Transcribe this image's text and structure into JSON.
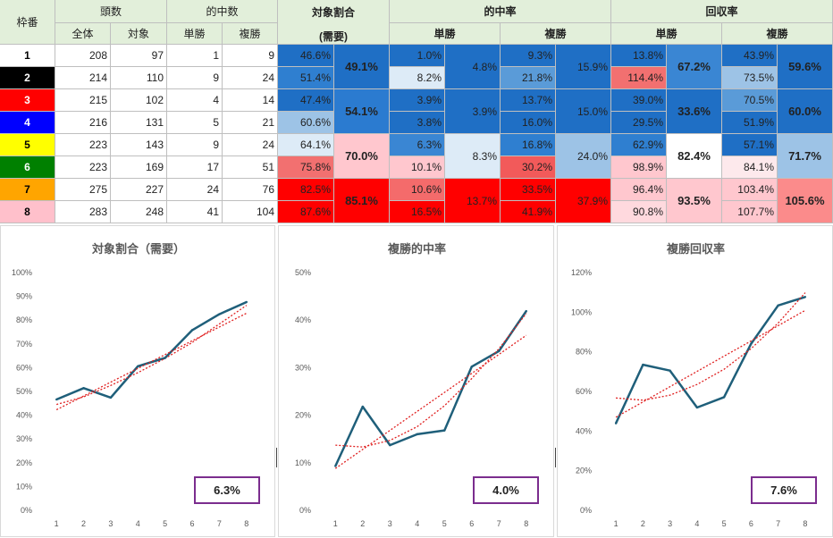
{
  "table": {
    "header": {
      "waku": "枠番",
      "tousu": "頭数",
      "zentai": "全体",
      "taisho": "対象",
      "tekichusu": "的中数",
      "tansho": "単勝",
      "fukusho": "複勝",
      "taisho_wariai": "対象割合",
      "juyou": "(需要)",
      "tekichuritsu": "的中率",
      "kaishuritsu": "回収率"
    },
    "rows": [
      {
        "waku": "1",
        "zentai": "208",
        "taisho": "97",
        "tan_hits": "1",
        "fuku_hits": "9",
        "ratio": "46.6%",
        "tan_rate": "1.0%",
        "fuku_rate": "9.3%",
        "tan_ret": "13.8%",
        "fuku_ret": "43.9%"
      },
      {
        "waku": "2",
        "zentai": "214",
        "taisho": "110",
        "tan_hits": "9",
        "fuku_hits": "24",
        "ratio": "51.4%",
        "tan_rate": "8.2%",
        "fuku_rate": "21.8%",
        "tan_ret": "114.4%",
        "fuku_ret": "73.5%"
      },
      {
        "waku": "3",
        "zentai": "215",
        "taisho": "102",
        "tan_hits": "4",
        "fuku_hits": "14",
        "ratio": "47.4%",
        "tan_rate": "3.9%",
        "fuku_rate": "13.7%",
        "tan_ret": "39.0%",
        "fuku_ret": "70.5%"
      },
      {
        "waku": "4",
        "zentai": "216",
        "taisho": "131",
        "tan_hits": "5",
        "fuku_hits": "21",
        "ratio": "60.6%",
        "tan_rate": "3.8%",
        "fuku_rate": "16.0%",
        "tan_ret": "29.5%",
        "fuku_ret": "51.9%"
      },
      {
        "waku": "5",
        "zentai": "223",
        "taisho": "143",
        "tan_hits": "9",
        "fuku_hits": "24",
        "ratio": "64.1%",
        "tan_rate": "6.3%",
        "fuku_rate": "16.8%",
        "tan_ret": "62.9%",
        "fuku_ret": "57.1%"
      },
      {
        "waku": "6",
        "zentai": "223",
        "taisho": "169",
        "tan_hits": "17",
        "fuku_hits": "51",
        "ratio": "75.8%",
        "tan_rate": "10.1%",
        "fuku_rate": "30.2%",
        "tan_ret": "98.9%",
        "fuku_ret": "84.1%"
      },
      {
        "waku": "7",
        "zentai": "275",
        "taisho": "227",
        "tan_hits": "24",
        "fuku_hits": "76",
        "ratio": "82.5%",
        "tan_rate": "10.6%",
        "fuku_rate": "33.5%",
        "tan_ret": "96.4%",
        "fuku_ret": "103.4%"
      },
      {
        "waku": "8",
        "zentai": "283",
        "taisho": "248",
        "tan_hits": "41",
        "fuku_hits": "104",
        "ratio": "87.6%",
        "tan_rate": "16.5%",
        "fuku_rate": "41.9%",
        "tan_ret": "90.8%",
        "fuku_ret": "107.7%"
      }
    ],
    "pairs": [
      {
        "ratio": "49.1%",
        "tan_rate": "4.8%",
        "fuku_rate": "15.9%",
        "tan_ret": "67.2%",
        "fuku_ret": "59.6%"
      },
      {
        "ratio": "54.1%",
        "tan_rate": "3.9%",
        "fuku_rate": "15.0%",
        "tan_ret": "33.6%",
        "fuku_ret": "60.0%"
      },
      {
        "ratio": "70.0%",
        "tan_rate": "8.3%",
        "fuku_rate": "24.0%",
        "tan_ret": "82.4%",
        "fuku_ret": "71.7%"
      },
      {
        "ratio": "85.1%",
        "tan_rate": "13.7%",
        "fuku_rate": "37.9%",
        "tan_ret": "93.5%",
        "fuku_ret": "105.6%"
      }
    ],
    "colors": {
      "header_bg": "#e2efda",
      "waku_colors": [
        "#ffffff",
        "#000000",
        "#ff0000",
        "#0000ff",
        "#ffff00",
        "#008000",
        "#ffa500",
        "#ffc0cb"
      ],
      "waku_text": [
        "#000000",
        "#ffffff",
        "#ffffff",
        "#ffffff",
        "#000000",
        "#ffffff",
        "#000000",
        "#000000"
      ],
      "ratio": [
        "#1f6fc5",
        "#2f7fd0",
        "#1f6fc5",
        "#9dc3e6",
        "#ddebf7",
        "#f27070",
        "#ff0000",
        "#ff0000"
      ],
      "ratio_pair": [
        "#1f6fc5",
        "#2b7bd0",
        "#ffc7ce",
        "#ff0000"
      ],
      "tan_rate": [
        "#1f6fc5",
        "#ddebf7",
        "#1f6fc5",
        "#1f6fc5",
        "#3a86d3",
        "#ffc7ce",
        "#f46b6b",
        "#ff0000"
      ],
      "tan_rate_pair": [
        "#1f6fc5",
        "#1f6fc5",
        "#ddebf7",
        "#ff0000"
      ],
      "fuku_rate": [
        "#1f6fc5",
        "#5a9bd8",
        "#1f6fc5",
        "#1f6fc5",
        "#2f7fd0",
        "#f25a5a",
        "#ff0000",
        "#ff0000"
      ],
      "fuku_rate_pair": [
        "#1f6fc5",
        "#1f6fc5",
        "#9dc3e6",
        "#ff0000"
      ],
      "tan_ret": [
        "#1f6fc5",
        "#f27070",
        "#1f6fc5",
        "#1f6fc5",
        "#2f7fd0",
        "#ffc7ce",
        "#ffc7ce",
        "#ffd9de"
      ],
      "tan_ret_pair": [
        "#3a86d3",
        "#1f6fc5",
        "#ffffff",
        "#ffc7ce"
      ],
      "fuku_ret": [
        "#1f6fc5",
        "#9dc3e6",
        "#5a9bd8",
        "#1f6fc5",
        "#1f6fc5",
        "#fde9ec",
        "#ffc7ce",
        "#ffc7ce"
      ],
      "fuku_ret_pair": [
        "#1f6fc5",
        "#1f6fc5",
        "#9dc3e6",
        "#fb8b8b"
      ]
    }
  },
  "chart_data": [
    {
      "type": "line",
      "title": "対象割合（需要）",
      "x": [
        1,
        2,
        3,
        4,
        5,
        6,
        7,
        8
      ],
      "series": [
        {
          "values": [
            46.6,
            51.4,
            47.4,
            60.6,
            64.1,
            75.8,
            82.5,
            87.6
          ]
        }
      ],
      "trend_linear": [
        42.3,
        48.1,
        53.9,
        59.7,
        65.5,
        71.3,
        77.1,
        82.9
      ],
      "trend_poly": [
        44.5,
        47.7,
        52.5,
        57.9,
        63.9,
        70.6,
        78.4,
        86.2
      ],
      "ylim": [
        0,
        100
      ],
      "yticks": [
        "0%",
        "10%",
        "20%",
        "30%",
        "40%",
        "50%",
        "60%",
        "70%",
        "80%",
        "90%",
        "100%"
      ],
      "ystep": 10,
      "badge": "6.3%"
    },
    {
      "type": "line",
      "title": "複勝的中率",
      "x": [
        1,
        2,
        3,
        4,
        5,
        6,
        7,
        8
      ],
      "series": [
        {
          "values": [
            9.3,
            21.8,
            13.7,
            16.0,
            16.8,
            30.2,
            33.5,
            41.9
          ]
        }
      ],
      "trend_linear": [
        8.8,
        12.8,
        16.8,
        20.8,
        24.8,
        28.8,
        32.8,
        36.8
      ],
      "trend_poly": [
        13.7,
        13.3,
        14.7,
        17.6,
        22.0,
        27.7,
        34.0,
        41.4
      ],
      "ylim": [
        0,
        50
      ],
      "yticks": [
        "0%",
        "10%",
        "20%",
        "30%",
        "40%",
        "50%"
      ],
      "ystep": 10,
      "badge": "4.0%"
    },
    {
      "type": "line",
      "title": "複勝回収率",
      "x": [
        1,
        2,
        3,
        4,
        5,
        6,
        7,
        8
      ],
      "series": [
        {
          "values": [
            43.9,
            73.5,
            70.5,
            51.9,
            57.1,
            84.1,
            103.4,
            107.7
          ]
        }
      ],
      "trend_linear": [
        47.0,
        54.7,
        62.4,
        70.1,
        77.8,
        85.5,
        93.2,
        100.9
      ],
      "trend_poly": [
        56.7,
        55.6,
        58.1,
        63.5,
        71.2,
        81.6,
        94.5,
        109.8
      ],
      "ylim": [
        0,
        120
      ],
      "yticks": [
        "0%",
        "20%",
        "40%",
        "60%",
        "80%",
        "100%",
        "120%"
      ],
      "ystep": 20,
      "badge": "7.6%"
    }
  ]
}
